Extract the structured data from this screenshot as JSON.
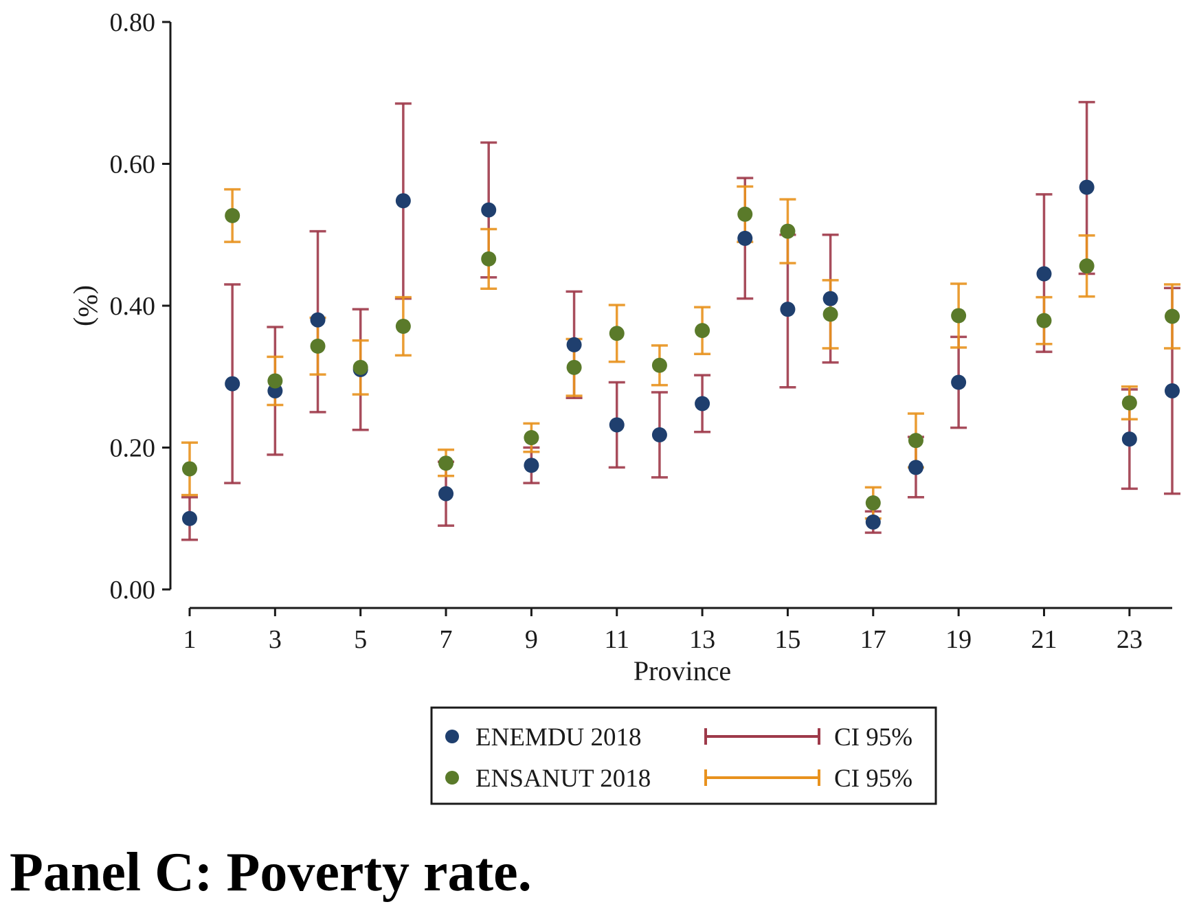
{
  "caption": "Panel C: Poverty rate.",
  "chart_data": {
    "type": "scatter",
    "xlabel": "Province",
    "ylabel": "(%)",
    "xlim": [
      1,
      24
    ],
    "ylim": [
      0,
      0.8
    ],
    "xticks": [
      "1",
      "3",
      "5",
      "7",
      "9",
      "11",
      "13",
      "15",
      "17",
      "19",
      "21",
      "23"
    ],
    "yticks": [
      "0.00",
      "0.20",
      "0.40",
      "0.60",
      "0.80"
    ],
    "grid": false,
    "legend_position": "bottom",
    "series": [
      {
        "name": "ENEMDU 2018",
        "ci_label": "CI 95%",
        "color": "#1f3f6e",
        "ci_color": "#9e3a4a",
        "points": [
          {
            "x": 1,
            "y": 0.1,
            "lo": 0.07,
            "hi": 0.13
          },
          {
            "x": 2,
            "y": 0.29,
            "lo": 0.15,
            "hi": 0.43
          },
          {
            "x": 3,
            "y": 0.28,
            "lo": 0.19,
            "hi": 0.37
          },
          {
            "x": 4,
            "y": 0.38,
            "lo": 0.25,
            "hi": 0.505
          },
          {
            "x": 5,
            "y": 0.31,
            "lo": 0.225,
            "hi": 0.395
          },
          {
            "x": 6,
            "y": 0.548,
            "lo": 0.41,
            "hi": 0.685
          },
          {
            "x": 7,
            "y": 0.135,
            "lo": 0.09,
            "hi": 0.18
          },
          {
            "x": 8,
            "y": 0.535,
            "lo": 0.44,
            "hi": 0.63
          },
          {
            "x": 9,
            "y": 0.175,
            "lo": 0.15,
            "hi": 0.2
          },
          {
            "x": 10,
            "y": 0.345,
            "lo": 0.27,
            "hi": 0.42
          },
          {
            "x": 11,
            "y": 0.232,
            "lo": 0.172,
            "hi": 0.292
          },
          {
            "x": 12,
            "y": 0.218,
            "lo": 0.158,
            "hi": 0.278
          },
          {
            "x": 13,
            "y": 0.262,
            "lo": 0.222,
            "hi": 0.302
          },
          {
            "x": 14,
            "y": 0.495,
            "lo": 0.41,
            "hi": 0.58
          },
          {
            "x": 15,
            "y": 0.395,
            "lo": 0.285,
            "hi": 0.5
          },
          {
            "x": 16,
            "y": 0.41,
            "lo": 0.32,
            "hi": 0.5
          },
          {
            "x": 17,
            "y": 0.095,
            "lo": 0.08,
            "hi": 0.11
          },
          {
            "x": 18,
            "y": 0.172,
            "lo": 0.13,
            "hi": 0.215
          },
          {
            "x": 19,
            "y": 0.292,
            "lo": 0.228,
            "hi": 0.356
          },
          {
            "x": 21,
            "y": 0.445,
            "lo": 0.335,
            "hi": 0.557
          },
          {
            "x": 22,
            "y": 0.567,
            "lo": 0.445,
            "hi": 0.687
          },
          {
            "x": 23,
            "y": 0.212,
            "lo": 0.142,
            "hi": 0.282
          },
          {
            "x": 24,
            "y": 0.28,
            "lo": 0.135,
            "hi": 0.425
          }
        ]
      },
      {
        "name": "ENSANUT 2018",
        "ci_label": "CI 95%",
        "color": "#5a7a2a",
        "ci_color": "#e8921e",
        "points": [
          {
            "x": 1,
            "y": 0.17,
            "lo": 0.133,
            "hi": 0.207
          },
          {
            "x": 2,
            "y": 0.527,
            "lo": 0.49,
            "hi": 0.564
          },
          {
            "x": 3,
            "y": 0.294,
            "lo": 0.26,
            "hi": 0.328
          },
          {
            "x": 4,
            "y": 0.343,
            "lo": 0.303,
            "hi": 0.383
          },
          {
            "x": 5,
            "y": 0.313,
            "lo": 0.275,
            "hi": 0.351
          },
          {
            "x": 6,
            "y": 0.371,
            "lo": 0.33,
            "hi": 0.412
          },
          {
            "x": 7,
            "y": 0.178,
            "lo": 0.16,
            "hi": 0.197
          },
          {
            "x": 8,
            "y": 0.466,
            "lo": 0.424,
            "hi": 0.508
          },
          {
            "x": 9,
            "y": 0.214,
            "lo": 0.194,
            "hi": 0.234
          },
          {
            "x": 10,
            "y": 0.313,
            "lo": 0.273,
            "hi": 0.353
          },
          {
            "x": 11,
            "y": 0.361,
            "lo": 0.321,
            "hi": 0.401
          },
          {
            "x": 12,
            "y": 0.316,
            "lo": 0.288,
            "hi": 0.344
          },
          {
            "x": 13,
            "y": 0.365,
            "lo": 0.332,
            "hi": 0.398
          },
          {
            "x": 14,
            "y": 0.529,
            "lo": 0.49,
            "hi": 0.568
          },
          {
            "x": 15,
            "y": 0.505,
            "lo": 0.46,
            "hi": 0.55
          },
          {
            "x": 16,
            "y": 0.388,
            "lo": 0.34,
            "hi": 0.436
          },
          {
            "x": 17,
            "y": 0.122,
            "lo": 0.1,
            "hi": 0.144
          },
          {
            "x": 18,
            "y": 0.21,
            "lo": 0.172,
            "hi": 0.248
          },
          {
            "x": 19,
            "y": 0.386,
            "lo": 0.341,
            "hi": 0.431
          },
          {
            "x": 21,
            "y": 0.379,
            "lo": 0.346,
            "hi": 0.412
          },
          {
            "x": 22,
            "y": 0.456,
            "lo": 0.413,
            "hi": 0.499
          },
          {
            "x": 23,
            "y": 0.263,
            "lo": 0.24,
            "hi": 0.286
          },
          {
            "x": 24,
            "y": 0.385,
            "lo": 0.34,
            "hi": 0.43
          }
        ]
      }
    ]
  }
}
